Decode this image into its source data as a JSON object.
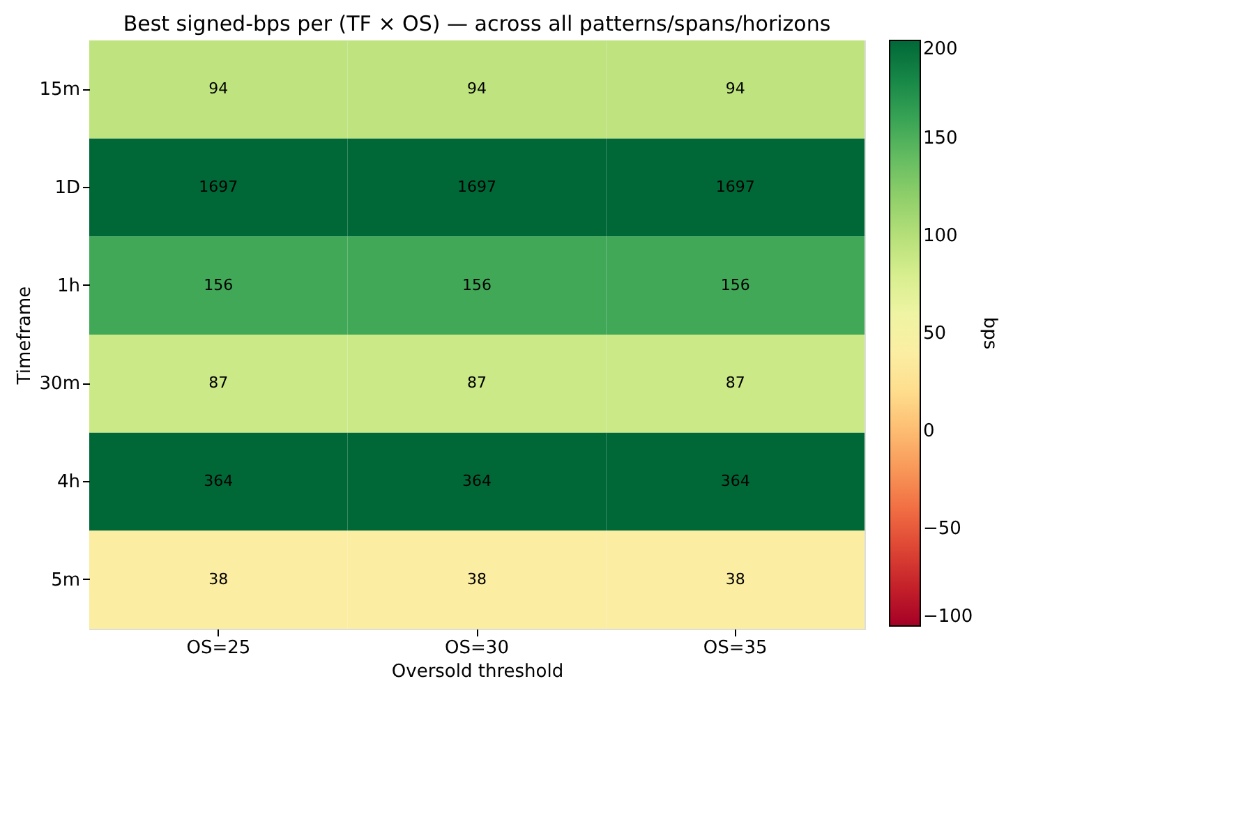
{
  "chart_data": {
    "type": "heatmap",
    "title": "Best signed-bps per (TF × OS) — across all patterns/spans/horizons",
    "xlabel": "Oversold threshold",
    "ylabel": "Timeframe",
    "clabel": "bps",
    "categories": [
      "OS=25",
      "OS=30",
      "OS=35"
    ],
    "y_categories": [
      "15m",
      "1D",
      "1h",
      "30m",
      "4h",
      "5m"
    ],
    "cells": [
      [
        94,
        94,
        94
      ],
      [
        1697,
        1697,
        1697
      ],
      [
        156,
        156,
        156
      ],
      [
        87,
        87,
        87
      ],
      [
        364,
        364,
        364
      ],
      [
        38,
        38,
        38
      ]
    ],
    "clim": [
      -100,
      200
    ],
    "cticks": [
      -100,
      -50,
      0,
      50,
      100,
      150,
      200
    ],
    "data_labels": true
  }
}
